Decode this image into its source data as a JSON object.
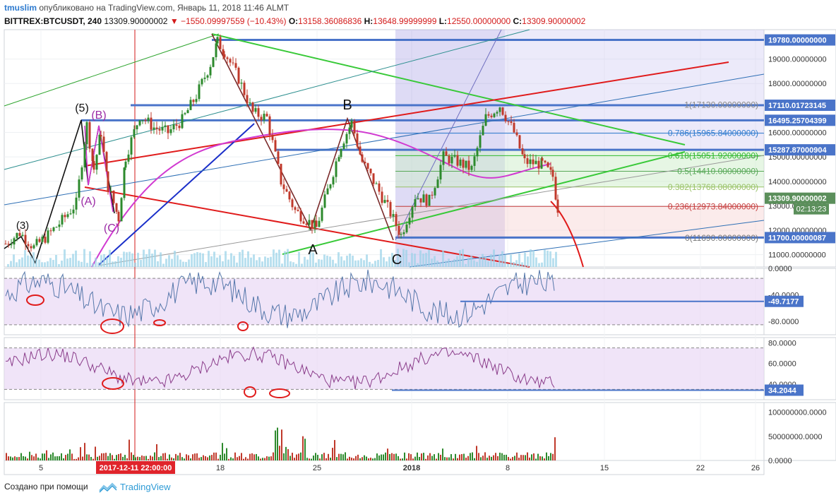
{
  "header": {
    "user": "tmuslim",
    "published_text": "опубликовано на TradingView.com, Январь 11, 2018 11:46 ALMT",
    "symbol": "BITTREX:BTCUSDT, 240",
    "last": "13309.90000002",
    "change": "▼ −1550.09997559 (−10.43%)",
    "o_label": "O:",
    "o_value": "13158.36086836",
    "h_label": "H:",
    "h_value": "13648.99999999",
    "l_label": "L:",
    "l_value": "12550.00000000",
    "c_label": "C:",
    "c_value": "13309.90000002"
  },
  "footer": {
    "made_with": "Создано при помощи",
    "brand": "TradingView",
    "icon": "tradingview-logo-icon"
  },
  "colors": {
    "up": "#2d8a2d",
    "down": "#c0392b",
    "accent_blue": "#4a74c9",
    "rsi_line": "#5577aa",
    "rsi2_line": "#8a3c8a",
    "fib_red": "#e01b1b",
    "magenta": "#d13ad1",
    "green_line": "#38c938",
    "volume_bar": "#9bd3e8"
  },
  "chart_data": [
    {
      "type": "line",
      "pane": "price",
      "y_axis_scale": "linear",
      "ylim": [
        10500,
        20200
      ],
      "x_tick_labels": [
        "5",
        "18",
        "25",
        "2018",
        "8",
        "15",
        "22",
        "26"
      ],
      "y_tick_labels": [
        "11000.00000000",
        "12000.00000000",
        "13000.00000000",
        "14000.00000000",
        "15000.00000000",
        "16000.00000000",
        "17000.00000000",
        "18000.00000000",
        "19000.00000000"
      ],
      "price_labels": [
        {
          "value": 19780.0,
          "text": "19780.00000000"
        },
        {
          "value": 17110.01723145,
          "text": "17110.01723145"
        },
        {
          "value": 16495.25704399,
          "text": "16495.25704399"
        },
        {
          "value": 15287.87000904,
          "text": "15287.87000904"
        },
        {
          "value": 13309.90000002,
          "text": "13309.90000002"
        },
        {
          "value": 11700.00000087,
          "text": "11700.00000087"
        }
      ],
      "countdown": "02:13:23",
      "fib_levels": [
        {
          "ratio": "1",
          "value": 17130.0,
          "text": "1(17130.00000000)"
        },
        {
          "ratio": "0.786",
          "value": 15965.84,
          "text": "0.786(15965.84000000)"
        },
        {
          "ratio": "0.618",
          "value": 15051.92,
          "text": "0.618(15051.92000000)"
        },
        {
          "ratio": "0.5",
          "value": 14410.0,
          "text": "0.5(14410.00000000)"
        },
        {
          "ratio": "0.382",
          "value": 13768.08,
          "text": "0.382(13768.08000000)"
        },
        {
          "ratio": "0.236",
          "value": 12973.84,
          "text": "0.236(12973.84000000)"
        },
        {
          "ratio": "0",
          "value": 11690.0,
          "text": "0(11690.00000000)"
        }
      ],
      "wave_labels": [
        "(3)",
        "(5)",
        "(B)",
        "(A)",
        "(C)",
        "B",
        "A",
        "C"
      ],
      "price_path": [
        [
          0,
          11450
        ],
        [
          20,
          11900
        ],
        [
          40,
          11300
        ],
        [
          60,
          11800
        ],
        [
          80,
          12400
        ],
        [
          100,
          13100
        ],
        [
          115,
          16300
        ],
        [
          125,
          14500
        ],
        [
          135,
          16000
        ],
        [
          145,
          13800
        ],
        [
          160,
          12500
        ],
        [
          170,
          15000
        ],
        [
          190,
          16700
        ],
        [
          210,
          16200
        ],
        [
          230,
          16000
        ],
        [
          250,
          16500
        ],
        [
          270,
          17500
        ],
        [
          290,
          18800
        ],
        [
          300,
          19700
        ],
        [
          310,
          19300
        ],
        [
          330,
          18200
        ],
        [
          350,
          16800
        ],
        [
          370,
          16600
        ],
        [
          390,
          14000
        ],
        [
          410,
          12800
        ],
        [
          440,
          12100
        ],
        [
          460,
          14000
        ],
        [
          475,
          15500
        ],
        [
          490,
          16400
        ],
        [
          505,
          14800
        ],
        [
          525,
          13800
        ],
        [
          545,
          12700
        ],
        [
          560,
          11800
        ],
        [
          580,
          13400
        ],
        [
          600,
          13200
        ],
        [
          620,
          15000
        ],
        [
          640,
          14800
        ],
        [
          660,
          14500
        ],
        [
          680,
          16600
        ],
        [
          700,
          17100
        ],
        [
          720,
          16000
        ],
        [
          735,
          14800
        ],
        [
          760,
          14700
        ],
        [
          775,
          14200
        ],
        [
          782,
          12900
        ],
        [
          786,
          13300
        ]
      ]
    },
    {
      "type": "line",
      "pane": "oscillator-1",
      "ylim": [
        -100,
        0
      ],
      "y_tick_labels": [
        "0.0000",
        "-40.0000",
        "-80.0000"
      ],
      "current_value": "-49.7177",
      "last_value": -49.7177
    },
    {
      "type": "line",
      "pane": "oscillator-2",
      "ylim": [
        25,
        85
      ],
      "y_tick_labels": [
        "80.0000",
        "60.0000",
        "40.0000"
      ],
      "current_value": "34.2044",
      "last_value": 34.2044
    },
    {
      "type": "bar",
      "pane": "volume",
      "ylim": [
        0,
        120000000
      ],
      "y_tick_labels": [
        "100000000.0000",
        "50000000.0000",
        "0.0000"
      ]
    }
  ],
  "x_axis": {
    "labels": [
      "5",
      "18",
      "25",
      "2018",
      "8",
      "15",
      "22",
      "26"
    ],
    "cursor_label": "2017-12-11 22:00:00"
  }
}
